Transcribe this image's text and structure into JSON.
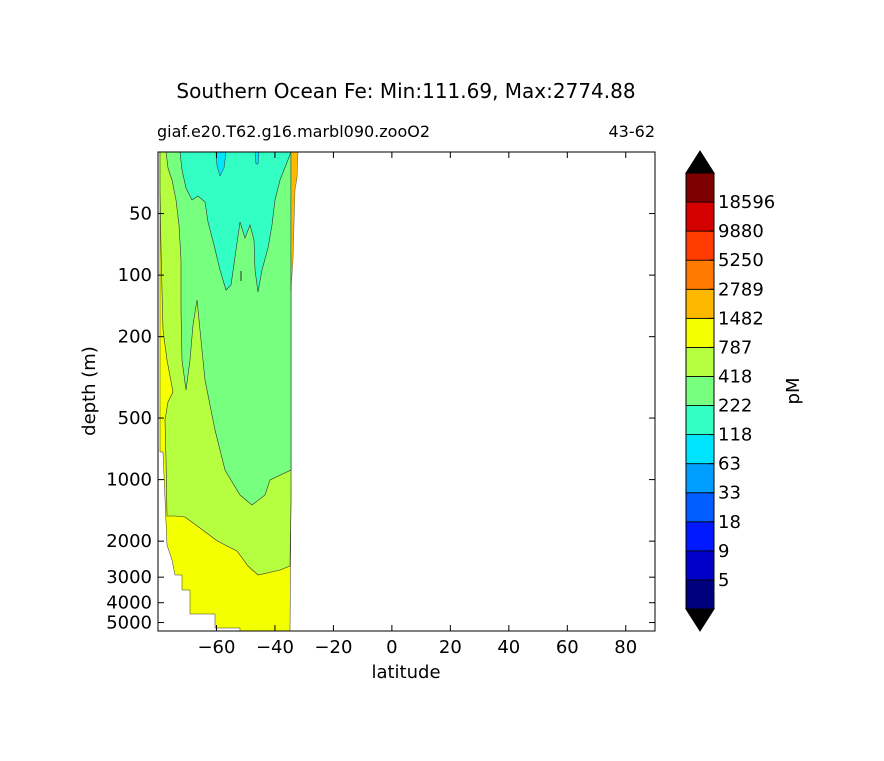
{
  "chart_data": {
    "type": "filled-contour",
    "title": "Southern Ocean Fe: Min:111.69, Max:2774.88",
    "subtitle_left": "giaf.e20.T62.g16.marbl090.zooO2",
    "subtitle_right": "43-62",
    "xlabel": "latitude",
    "ylabel": "depth (m)",
    "xlim": [
      -80,
      90
    ],
    "ylim": [
      5500,
      25
    ],
    "y_scale": "log, inverted",
    "x_ticks": [
      -60,
      -40,
      -20,
      0,
      20,
      40,
      60,
      80
    ],
    "x_tick_labels": [
      "−60",
      "−40",
      "−20",
      "0",
      "20",
      "40",
      "60",
      "80"
    ],
    "y_ticks": [
      50,
      100,
      200,
      500,
      1000,
      2000,
      3000,
      4000,
      5000
    ],
    "y_tick_labels": [
      "50",
      "100",
      "200",
      "500",
      "1000",
      "2000",
      "3000",
      "4000",
      "5000"
    ],
    "colorbar": {
      "label": "pM",
      "levels": [
        "5",
        "9",
        "18",
        "33",
        "63",
        "118",
        "222",
        "418",
        "787",
        "1482",
        "2789",
        "5250",
        "9880",
        "18596"
      ],
      "colors": [
        "#00007f",
        "#0000c8",
        "#0019ff",
        "#005dff",
        "#009fff",
        "#00e5ff",
        "#33ffc4",
        "#77ff7f",
        "#b6ff40",
        "#f4ff00",
        "#ffb800",
        "#ff7a00",
        "#ff3b00",
        "#d40000",
        "#7f0000"
      ],
      "extend": "both",
      "min_arrow_color": "#000000",
      "max_arrow_color": "#000000"
    },
    "data_extent_lat": [
      -79,
      -33
    ],
    "region_values_pM": {
      "surface_core_lat_-62_to_-40_depth_25_to_150": "118-222",
      "intermediate_lat_-72_to_-34_depth_100_to_1500": "222-418",
      "deep_lat_-78_to_-34_depth_150_to_3500": "418-787",
      "abyssal_lat_-79_to_-34_depth_2000_to_5500": "787-1482",
      "northern_edge_lat_-34_to_-32_surface": "1482-2789"
    }
  }
}
